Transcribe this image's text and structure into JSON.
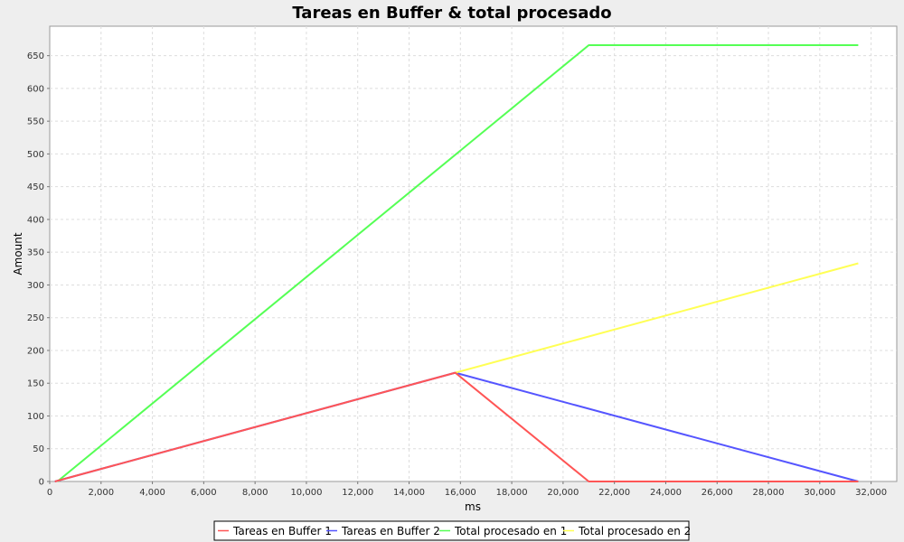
{
  "chart_data": {
    "type": "line",
    "title": "Tareas en Buffer & total procesado",
    "xlabel": "ms",
    "ylabel": "Amount",
    "xlim": [
      0,
      33000
    ],
    "ylim": [
      0,
      695
    ],
    "x_ticks": [
      0,
      2000,
      4000,
      6000,
      8000,
      10000,
      12000,
      14000,
      16000,
      18000,
      20000,
      22000,
      24000,
      26000,
      28000,
      30000,
      32000
    ],
    "x_tick_labels": [
      "0",
      "2,000",
      "4,000",
      "6,000",
      "8,000",
      "10,000",
      "12,000",
      "14,000",
      "16,000",
      "18,000",
      "20,000",
      "22,000",
      "24,000",
      "26,000",
      "28,000",
      "30,000",
      "32,000"
    ],
    "y_ticks": [
      0,
      50,
      100,
      150,
      200,
      250,
      300,
      350,
      400,
      450,
      500,
      550,
      600,
      650
    ],
    "y_tick_labels": [
      "0",
      "50",
      "100",
      "150",
      "200",
      "250",
      "300",
      "350",
      "400",
      "450",
      "500",
      "550",
      "600",
      "650"
    ],
    "grid": true,
    "legend_position": "bottom",
    "series": [
      {
        "name": "Tareas en Buffer 2",
        "color": "#5555ff",
        "points": [
          [
            200,
            0
          ],
          [
            15800,
            166
          ],
          [
            31500,
            0
          ]
        ]
      },
      {
        "name": "Total procesado en 2",
        "color": "#ffff55",
        "points": [
          [
            15800,
            166
          ],
          [
            31500,
            333
          ]
        ]
      },
      {
        "name": "Total procesado en 1",
        "color": "#55ff55",
        "points": [
          [
            300,
            0
          ],
          [
            21000,
            666
          ],
          [
            31500,
            666
          ]
        ]
      },
      {
        "name": "Tareas en Buffer 1",
        "color": "#ff5555",
        "points": [
          [
            200,
            0
          ],
          [
            15800,
            166
          ],
          [
            21000,
            0
          ],
          [
            31500,
            0
          ]
        ]
      }
    ],
    "legend": [
      {
        "name": "Tareas en Buffer 1",
        "color": "#ff5555"
      },
      {
        "name": "Tareas en Buffer 2",
        "color": "#5555ff"
      },
      {
        "name": "Total procesado en 1",
        "color": "#55ff55"
      },
      {
        "name": "Total procesado en 2",
        "color": "#ffff55"
      }
    ]
  }
}
